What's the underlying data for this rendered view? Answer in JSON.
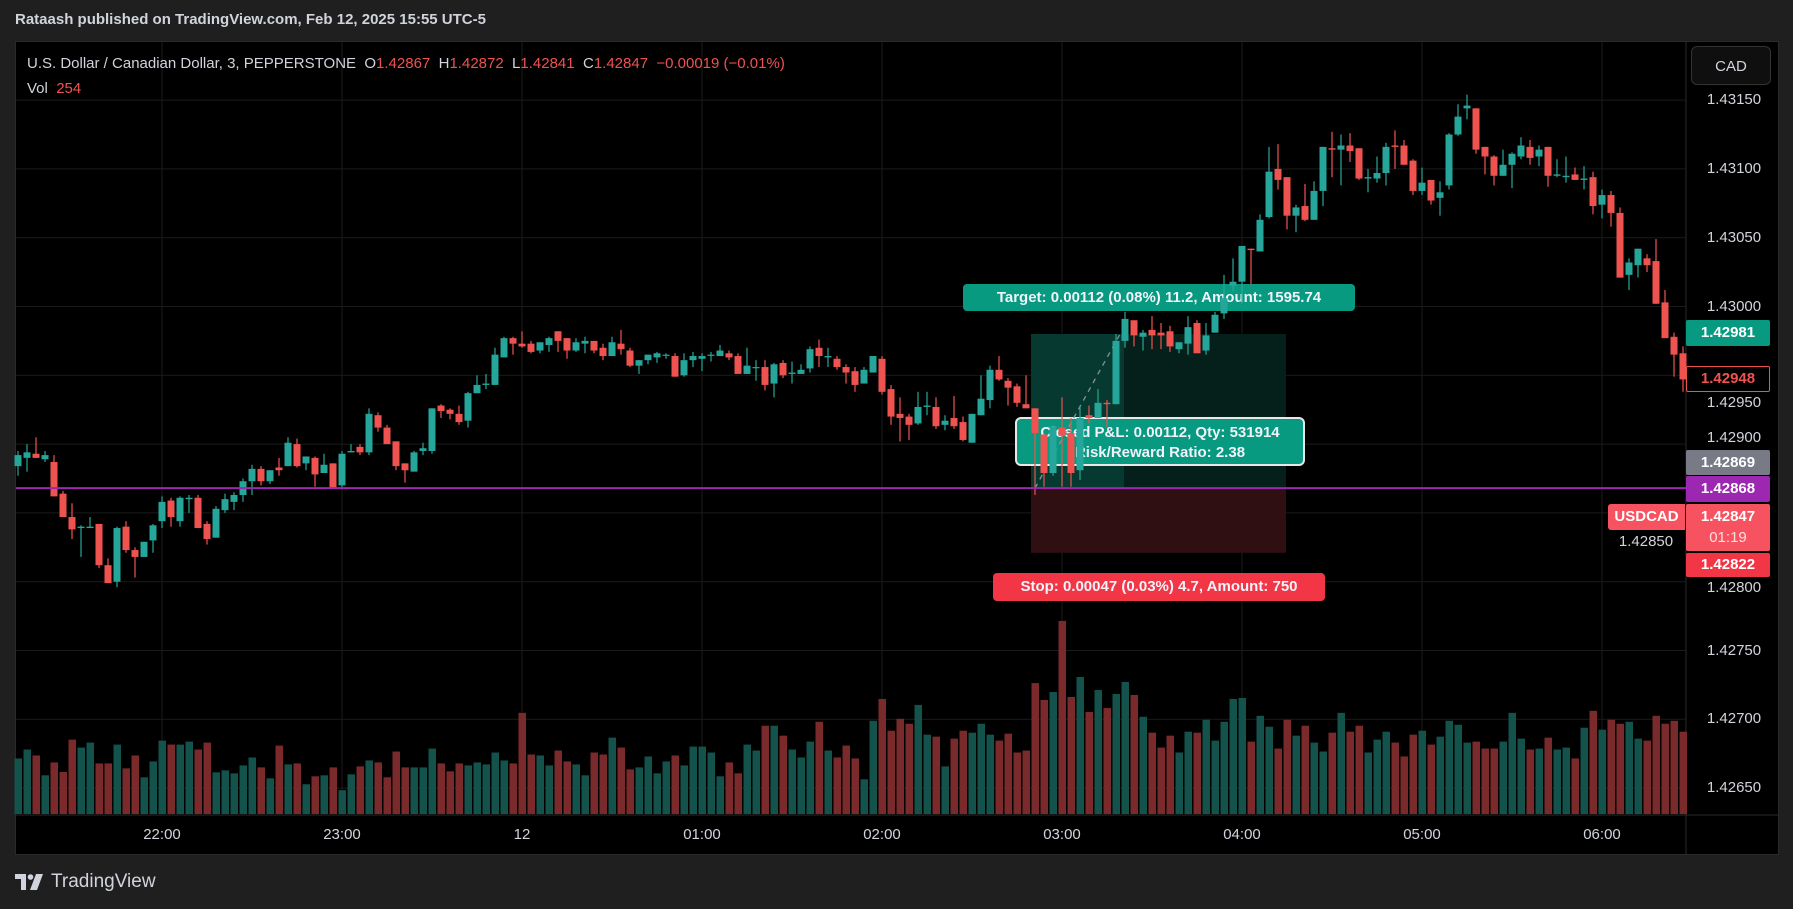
{
  "header": {
    "publish_line": "Rataash published on TradingView.com, Feb 12, 2025 15:55 UTC-5"
  },
  "legend": {
    "symbol": "U.S. Dollar / Canadian Dollar, 3, PEPPERSTONE",
    "o_label": "O",
    "o": "1.42867",
    "h_label": "H",
    "h": "1.42872",
    "l_label": "L",
    "l": "1.42841",
    "c_label": "C",
    "c": "1.42847",
    "change": "−0.00019 (−0.01%)",
    "vol_label": "Vol",
    "vol": "254"
  },
  "currency_button": "CAD",
  "symbol_tag": "USDCAD",
  "price_labels": {
    "target_price": "1.42981",
    "last_visible_close": "1.42948",
    "crosshair_price": "1.42869",
    "entry_line_price": "1.42868",
    "current_price": "1.42847",
    "countdown": "01:19",
    "stop_price": "1.42822"
  },
  "position": {
    "target_label": "Target: 0.00112 (0.08%) 11.2, Amount: 1595.74",
    "pnl_label": "Closed P&L: 0.00112, Qty: 531914",
    "rr_label": "Risk/Reward Ratio: 2.38",
    "stop_label": "Stop: 0.00047 (0.03%) 4.7, Amount: 750",
    "entry": 1.42868,
    "target": 1.4298,
    "stop": 1.42821
  },
  "footer": {
    "brand": "TradingView"
  },
  "colors": {
    "up": "#26a69a",
    "down": "#ef5350",
    "entry_line": "#9c27b0",
    "target_fill": "#089981",
    "stop_fill": "#f23645",
    "background": "#000000"
  },
  "chart_data": {
    "type": "candlestick",
    "interval_minutes": 3,
    "ylim": [
      1.42615,
      1.43185
    ],
    "grid": true,
    "price_ticks": [
      "1.43150",
      "1.43100",
      "1.43050",
      "1.43000",
      "1.42950",
      "1.42900",
      "1.42850",
      "1.42800",
      "1.42750",
      "1.42700",
      "1.42650"
    ],
    "time_ticks": [
      {
        "label": "22:00",
        "index": 16
      },
      {
        "label": "23:00",
        "index": 36
      },
      {
        "label": "12",
        "index": 56
      },
      {
        "label": "01:00",
        "index": 76
      },
      {
        "label": "02:00",
        "index": 96
      },
      {
        "label": "03:00",
        "index": 116
      },
      {
        "label": "04:00",
        "index": 136
      },
      {
        "label": "05:00",
        "index": 156
      },
      {
        "label": "06:00",
        "index": 176
      }
    ],
    "ohlc": [
      [
        1.42884,
        1.42895,
        1.42877,
        1.42892
      ],
      [
        1.4289,
        1.429,
        1.4288,
        1.42894
      ],
      [
        1.42893,
        1.42905,
        1.4289,
        1.4289
      ],
      [
        1.42889,
        1.42895,
        1.42887,
        1.42892
      ],
      [
        1.42887,
        1.42892,
        1.42862,
        1.42862
      ],
      [
        1.42864,
        1.42866,
        1.42847,
        1.42847
      ],
      [
        1.42847,
        1.42857,
        1.42831,
        1.42838
      ],
      [
        1.42839,
        1.42841,
        1.42818,
        1.4284
      ],
      [
        1.42839,
        1.42847,
        1.42839,
        1.4284
      ],
      [
        1.42842,
        1.42842,
        1.4281,
        1.42812
      ],
      [
        1.42812,
        1.42817,
        1.42799,
        1.42799
      ],
      [
        1.428,
        1.4284,
        1.42796,
        1.42839
      ],
      [
        1.4284,
        1.42844,
        1.42821,
        1.42823
      ],
      [
        1.42823,
        1.42825,
        1.42803,
        1.42818
      ],
      [
        1.42818,
        1.42829,
        1.42818,
        1.42829
      ],
      [
        1.4283,
        1.42842,
        1.42821,
        1.42841
      ],
      [
        1.42844,
        1.42862,
        1.42839,
        1.42858
      ],
      [
        1.42859,
        1.42861,
        1.4284,
        1.42847
      ],
      [
        1.42844,
        1.42862,
        1.4284,
        1.42861
      ],
      [
        1.4286,
        1.42863,
        1.4285,
        1.42861
      ],
      [
        1.42861,
        1.42863,
        1.42839,
        1.42839
      ],
      [
        1.42842,
        1.42844,
        1.42827,
        1.42831
      ],
      [
        1.42832,
        1.42855,
        1.42832,
        1.42853
      ],
      [
        1.42852,
        1.42864,
        1.4285,
        1.4286
      ],
      [
        1.42858,
        1.42865,
        1.42852,
        1.42863
      ],
      [
        1.42863,
        1.42875,
        1.42858,
        1.42873
      ],
      [
        1.42873,
        1.42885,
        1.42863,
        1.42882
      ],
      [
        1.42882,
        1.42884,
        1.4287,
        1.42873
      ],
      [
        1.42873,
        1.42881,
        1.42871,
        1.42881
      ],
      [
        1.42883,
        1.4289,
        1.42877,
        1.42881
      ],
      [
        1.42884,
        1.42905,
        1.42884,
        1.42901
      ],
      [
        1.429,
        1.42904,
        1.42883,
        1.42884
      ],
      [
        1.42886,
        1.42891,
        1.42881,
        1.42891
      ],
      [
        1.4289,
        1.42891,
        1.42869,
        1.42878
      ],
      [
        1.42879,
        1.42893,
        1.42879,
        1.42885
      ],
      [
        1.42886,
        1.42886,
        1.42868,
        1.42868
      ],
      [
        1.4287,
        1.42895,
        1.42867,
        1.42893
      ],
      [
        1.42894,
        1.429,
        1.42894,
        1.42895
      ],
      [
        1.42898,
        1.429,
        1.42892,
        1.42894
      ],
      [
        1.42894,
        1.42926,
        1.42892,
        1.42922
      ],
      [
        1.42921,
        1.42923,
        1.42909,
        1.42912
      ],
      [
        1.42912,
        1.42914,
        1.429,
        1.429
      ],
      [
        1.42902,
        1.42902,
        1.42881,
        1.42884
      ],
      [
        1.42886,
        1.42886,
        1.42872,
        1.42881
      ],
      [
        1.4288,
        1.42895,
        1.4288,
        1.42894
      ],
      [
        1.42895,
        1.42901,
        1.42892,
        1.42897
      ],
      [
        1.42895,
        1.42926,
        1.42893,
        1.42926
      ],
      [
        1.42928,
        1.42929,
        1.42919,
        1.42924
      ],
      [
        1.42925,
        1.42926,
        1.42918,
        1.42922
      ],
      [
        1.42922,
        1.42928,
        1.42914,
        1.42916
      ],
      [
        1.42917,
        1.42938,
        1.42912,
        1.42937
      ],
      [
        1.42937,
        1.4295,
        1.42937,
        1.42943
      ],
      [
        1.42943,
        1.42951,
        1.4294,
        1.42944
      ],
      [
        1.42943,
        1.4297,
        1.42943,
        1.42965
      ],
      [
        1.42963,
        1.42978,
        1.42963,
        1.42977
      ],
      [
        1.42977,
        1.42978,
        1.42965,
        1.42973
      ],
      [
        1.42973,
        1.42982,
        1.4297,
        1.42971
      ],
      [
        1.42973,
        1.42975,
        1.42966,
        1.42967
      ],
      [
        1.42968,
        1.42974,
        1.42966,
        1.42974
      ],
      [
        1.42972,
        1.42978,
        1.42967,
        1.42977
      ],
      [
        1.42982,
        1.42982,
        1.42967,
        1.42975
      ],
      [
        1.42977,
        1.42977,
        1.42962,
        1.42968
      ],
      [
        1.42968,
        1.42977,
        1.42967,
        1.42974
      ],
      [
        1.42973,
        1.42978,
        1.42966,
        1.42975
      ],
      [
        1.42975,
        1.42975,
        1.42966,
        1.42968
      ],
      [
        1.4297,
        1.42973,
        1.42961,
        1.42964
      ],
      [
        1.42964,
        1.42978,
        1.42964,
        1.42974
      ],
      [
        1.42973,
        1.42983,
        1.42965,
        1.42969
      ],
      [
        1.42968,
        1.4297,
        1.42956,
        1.42957
      ],
      [
        1.42957,
        1.42961,
        1.42951,
        1.42961
      ],
      [
        1.42961,
        1.42965,
        1.42958,
        1.42965
      ],
      [
        1.42963,
        1.42967,
        1.42959,
        1.42966
      ],
      [
        1.42965,
        1.42966,
        1.42962,
        1.42965
      ],
      [
        1.42964,
        1.42966,
        1.42949,
        1.42949
      ],
      [
        1.4295,
        1.42966,
        1.42949,
        1.42961
      ],
      [
        1.42961,
        1.42967,
        1.42956,
        1.42964
      ],
      [
        1.42962,
        1.42966,
        1.42953,
        1.42964
      ],
      [
        1.42965,
        1.42967,
        1.4296,
        1.42965
      ],
      [
        1.42964,
        1.42972,
        1.42964,
        1.42968
      ],
      [
        1.42966,
        1.42968,
        1.42961,
        1.42963
      ],
      [
        1.42964,
        1.42966,
        1.42951,
        1.42951
      ],
      [
        1.42951,
        1.4297,
        1.42951,
        1.42957
      ],
      [
        1.42956,
        1.42961,
        1.42946,
        1.42956
      ],
      [
        1.42956,
        1.42961,
        1.42939,
        1.42943
      ],
      [
        1.42944,
        1.42959,
        1.42934,
        1.42958
      ],
      [
        1.42959,
        1.42961,
        1.42948,
        1.4295
      ],
      [
        1.42951,
        1.4296,
        1.42944,
        1.42952
      ],
      [
        1.42951,
        1.42958,
        1.42951,
        1.42954
      ],
      [
        1.42955,
        1.42971,
        1.42952,
        1.42969
      ],
      [
        1.4297,
        1.42976,
        1.42956,
        1.42964
      ],
      [
        1.42963,
        1.4297,
        1.42956,
        1.42964
      ],
      [
        1.42962,
        1.42964,
        1.42954,
        1.42956
      ],
      [
        1.42956,
        1.42958,
        1.42944,
        1.42952
      ],
      [
        1.42953,
        1.42956,
        1.42938,
        1.42943
      ],
      [
        1.42944,
        1.42956,
        1.42944,
        1.42954
      ],
      [
        1.42952,
        1.42964,
        1.42952,
        1.42964
      ],
      [
        1.42962,
        1.42964,
        1.42936,
        1.42938
      ],
      [
        1.4294,
        1.42943,
        1.42914,
        1.4292
      ],
      [
        1.42922,
        1.42934,
        1.42902,
        1.42919
      ],
      [
        1.4292,
        1.42922,
        1.42903,
        1.42914
      ],
      [
        1.42915,
        1.42938,
        1.42914,
        1.42927
      ],
      [
        1.42927,
        1.42938,
        1.42921,
        1.42928
      ],
      [
        1.42927,
        1.42934,
        1.42911,
        1.42913
      ],
      [
        1.42914,
        1.42921,
        1.4291,
        1.42917
      ],
      [
        1.42919,
        1.42935,
        1.42911,
        1.42913
      ],
      [
        1.42916,
        1.4292,
        1.42902,
        1.42903
      ],
      [
        1.42901,
        1.42922,
        1.42901,
        1.42922
      ],
      [
        1.42921,
        1.4295,
        1.42921,
        1.42933
      ],
      [
        1.42932,
        1.42957,
        1.42926,
        1.42954
      ],
      [
        1.42954,
        1.42964,
        1.42946,
        1.42947
      ],
      [
        1.42946,
        1.42948,
        1.42928,
        1.42941
      ],
      [
        1.42942,
        1.42944,
        1.42927,
        1.4293
      ],
      [
        1.42929,
        1.4295,
        1.42926,
        1.42926
      ],
      [
        1.42926,
        1.42926,
        1.42863,
        1.42908
      ],
      [
        1.42907,
        1.42907,
        1.42869,
        1.42879
      ],
      [
        1.42879,
        1.42913,
        1.42877,
        1.42913
      ],
      [
        1.42912,
        1.42934,
        1.42869,
        1.42906
      ],
      [
        1.42908,
        1.42919,
        1.42869,
        1.42879
      ],
      [
        1.42881,
        1.42928,
        1.42874,
        1.42919
      ],
      [
        1.42921,
        1.42928,
        1.42915,
        1.42919
      ],
      [
        1.42919,
        1.4294,
        1.42919,
        1.4293
      ],
      [
        1.4293,
        1.42932,
        1.42912,
        1.42929
      ],
      [
        1.42929,
        1.4298,
        1.42929,
        1.42975
      ],
      [
        1.42975,
        1.42996,
        1.4297,
        1.42991
      ],
      [
        1.4299,
        1.4299,
        1.42971,
        1.42979
      ],
      [
        1.42978,
        1.42983,
        1.42968,
        1.42981
      ],
      [
        1.42983,
        1.42993,
        1.42969,
        1.42979
      ],
      [
        1.42981,
        1.42988,
        1.42969,
        1.42979
      ],
      [
        1.42982,
        1.42986,
        1.42967,
        1.42971
      ],
      [
        1.42969,
        1.42974,
        1.42966,
        1.42974
      ],
      [
        1.42973,
        1.42993,
        1.42965,
        1.42985
      ],
      [
        1.42988,
        1.4299,
        1.42966,
        1.42966
      ],
      [
        1.42968,
        1.42988,
        1.42965,
        1.42979
      ],
      [
        1.42981,
        1.42996,
        1.42981,
        1.42994
      ],
      [
        1.42995,
        1.43023,
        1.42991,
        1.43006
      ],
      [
        1.43015,
        1.43035,
        1.43011,
        1.43018
      ],
      [
        1.43018,
        1.43044,
        1.43002,
        1.43044
      ],
      [
        1.43042,
        1.43042,
        1.43016,
        1.43041
      ],
      [
        1.4304,
        1.43067,
        1.4304,
        1.43063
      ],
      [
        1.43065,
        1.43116,
        1.43064,
        1.43098
      ],
      [
        1.431,
        1.43118,
        1.43085,
        1.43092
      ],
      [
        1.43094,
        1.43094,
        1.43056,
        1.43066
      ],
      [
        1.43066,
        1.43074,
        1.43054,
        1.43072
      ],
      [
        1.43073,
        1.43089,
        1.43062,
        1.43063
      ],
      [
        1.43063,
        1.43091,
        1.43063,
        1.43084
      ],
      [
        1.43084,
        1.43116,
        1.43073,
        1.43116
      ],
      [
        1.43115,
        1.43127,
        1.43094,
        1.43114
      ],
      [
        1.43114,
        1.43125,
        1.43088,
        1.43117
      ],
      [
        1.43117,
        1.43126,
        1.43105,
        1.43113
      ],
      [
        1.43115,
        1.43115,
        1.43092,
        1.43093
      ],
      [
        1.43093,
        1.431,
        1.43083,
        1.43094
      ],
      [
        1.43093,
        1.43109,
        1.4309,
        1.43097
      ],
      [
        1.43097,
        1.43119,
        1.43088,
        1.43116
      ],
      [
        1.43117,
        1.43128,
        1.431,
        1.43116
      ],
      [
        1.43117,
        1.43121,
        1.43103,
        1.43103
      ],
      [
        1.43106,
        1.43107,
        1.43081,
        1.43084
      ],
      [
        1.43084,
        1.43101,
        1.43081,
        1.4309
      ],
      [
        1.43092,
        1.43092,
        1.43074,
        1.43077
      ],
      [
        1.43079,
        1.43091,
        1.43066,
        1.43083
      ],
      [
        1.43088,
        1.43126,
        1.43085,
        1.43125
      ],
      [
        1.43125,
        1.43147,
        1.43124,
        1.43138
      ],
      [
        1.43144,
        1.43154,
        1.43136,
        1.43146
      ],
      [
        1.43144,
        1.43144,
        1.43111,
        1.43114
      ],
      [
        1.43116,
        1.43116,
        1.43096,
        1.43109
      ],
      [
        1.43109,
        1.4311,
        1.43088,
        1.43095
      ],
      [
        1.43095,
        1.43114,
        1.43095,
        1.43103
      ],
      [
        1.43103,
        1.43112,
        1.43086,
        1.43111
      ],
      [
        1.43109,
        1.43123,
        1.43107,
        1.43117
      ],
      [
        1.43116,
        1.43121,
        1.43103,
        1.43108
      ],
      [
        1.43109,
        1.43117,
        1.43102,
        1.43114
      ],
      [
        1.43116,
        1.43116,
        1.43087,
        1.43095
      ],
      [
        1.43095,
        1.43107,
        1.43094,
        1.43096
      ],
      [
        1.43094,
        1.43109,
        1.4309,
        1.43095
      ],
      [
        1.43096,
        1.43101,
        1.43092,
        1.43092
      ],
      [
        1.43092,
        1.43102,
        1.43085,
        1.43093
      ],
      [
        1.43094,
        1.43098,
        1.43067,
        1.43073
      ],
      [
        1.43074,
        1.43085,
        1.43064,
        1.43081
      ],
      [
        1.43081,
        1.43084,
        1.43058,
        1.43068
      ],
      [
        1.43068,
        1.43072,
        1.43021,
        1.43021
      ],
      [
        1.43023,
        1.43035,
        1.43012,
        1.43032
      ],
      [
        1.4303,
        1.43042,
        1.43021,
        1.43042
      ],
      [
        1.43035,
        1.43038,
        1.43025,
        1.4303
      ],
      [
        1.43033,
        1.43049,
        1.43002,
        1.43002
      ],
      [
        1.43003,
        1.43012,
        1.42977,
        1.42977
      ],
      [
        1.42978,
        1.42981,
        1.42949,
        1.42965
      ],
      [
        1.42966,
        1.42971,
        1.42938,
        1.42947
      ]
    ],
    "volume": [
      336,
      390,
      354,
      234,
      312,
      254,
      450,
      402,
      432,
      306,
      306,
      420,
      276,
      354,
      222,
      318,
      444,
      420,
      420,
      438,
      390,
      432,
      252,
      264,
      246,
      294,
      342,
      282,
      216,
      414,
      300,
      306,
      180,
      228,
      234,
      282,
      144,
      240,
      288,
      324,
      312,
      222,
      378,
      282,
      282,
      282,
      396,
      306,
      258,
      306,
      294,
      312,
      300,
      372,
      324,
      306,
      612,
      360,
      354,
      294,
      384,
      318,
      300,
      234,
      372,
      360,
      462,
      402,
      270,
      282,
      348,
      246,
      318,
      354,
      294,
      408,
      408,
      372,
      228,
      312,
      246,
      420,
      384,
      534,
      534,
      474,
      390,
      342,
      438,
      558,
      384,
      342,
      414,
      336,
      210,
      564,
      696,
      504,
      576,
      546,
      660,
      480,
      468,
      288,
      456,
      504,
      492,
      546,
      480,
      444,
      486,
      372,
      384,
      792,
      690,
      738,
      1168,
      708,
      829,
      617,
      750,
      641,
      726,
      799,
      720,
      588,
      492,
      402,
      474,
      372,
      498,
      492,
      570,
      444,
      558,
      696,
      702,
      438,
      594,
      528,
      396,
      570,
      474,
      534,
      432,
      378,
      492,
      612,
      498,
      534,
      372,
      450,
      498,
      432,
      348,
      480,
      504,
      420,
      468,
      564,
      540,
      432,
      438,
      396,
      396,
      438,
      612,
      456,
      390,
      396,
      462,
      390,
      402,
      336,
      522,
      624,
      510,
      570,
      546,
      558,
      456,
      444,
      594,
      546,
      564,
      498
    ]
  }
}
